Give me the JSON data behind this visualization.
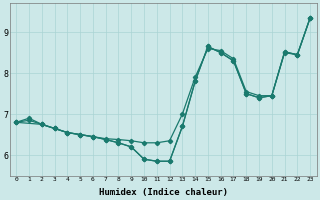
{
  "xlabel": "Humidex (Indice chaleur)",
  "bg_color": "#cce8e8",
  "line_color": "#1a7a6e",
  "grid_color": "#aad4d4",
  "xlim": [
    -0.5,
    23.5
  ],
  "ylim": [
    5.5,
    9.7
  ],
  "xticks": [
    0,
    1,
    2,
    3,
    4,
    5,
    6,
    7,
    8,
    9,
    10,
    11,
    12,
    13,
    14,
    15,
    16,
    17,
    18,
    19,
    20,
    21,
    22,
    23
  ],
  "yticks": [
    6,
    7,
    8,
    9
  ],
  "line1_x": [
    0,
    1,
    2,
    3,
    4,
    5,
    6,
    7,
    8,
    9,
    10,
    11,
    12,
    13,
    14,
    15,
    16,
    17,
    18,
    19,
    20,
    21,
    22,
    23
  ],
  "line1_y": [
    6.8,
    6.9,
    6.75,
    6.65,
    6.55,
    6.5,
    6.45,
    6.4,
    6.38,
    6.35,
    6.3,
    6.3,
    6.35,
    7.0,
    7.9,
    8.6,
    8.55,
    8.35,
    7.55,
    7.45,
    7.45,
    8.5,
    8.45,
    9.35
  ],
  "line2_x": [
    0,
    1,
    2,
    3,
    4,
    5,
    6,
    7,
    8,
    9,
    10,
    11,
    12,
    13,
    14,
    15,
    16,
    17,
    18,
    19,
    20,
    21,
    22,
    23
  ],
  "line2_y": [
    6.8,
    6.85,
    6.75,
    6.65,
    6.55,
    6.5,
    6.45,
    6.38,
    6.3,
    6.2,
    5.9,
    5.85,
    5.85,
    6.7,
    7.8,
    8.65,
    8.5,
    8.3,
    7.5,
    7.4,
    7.45,
    8.52,
    8.45,
    9.35
  ],
  "line3_x": [
    0,
    2,
    3,
    4,
    5,
    6,
    7,
    8,
    9,
    10,
    11,
    12,
    13,
    14,
    15,
    16,
    17,
    18,
    19,
    20,
    21,
    22,
    23
  ],
  "line3_y": [
    6.8,
    6.75,
    6.65,
    6.55,
    6.5,
    6.45,
    6.38,
    6.3,
    6.2,
    5.9,
    5.85,
    5.85,
    6.7,
    7.8,
    8.65,
    8.5,
    8.3,
    7.5,
    7.4,
    7.45,
    8.52,
    8.45,
    9.35
  ]
}
